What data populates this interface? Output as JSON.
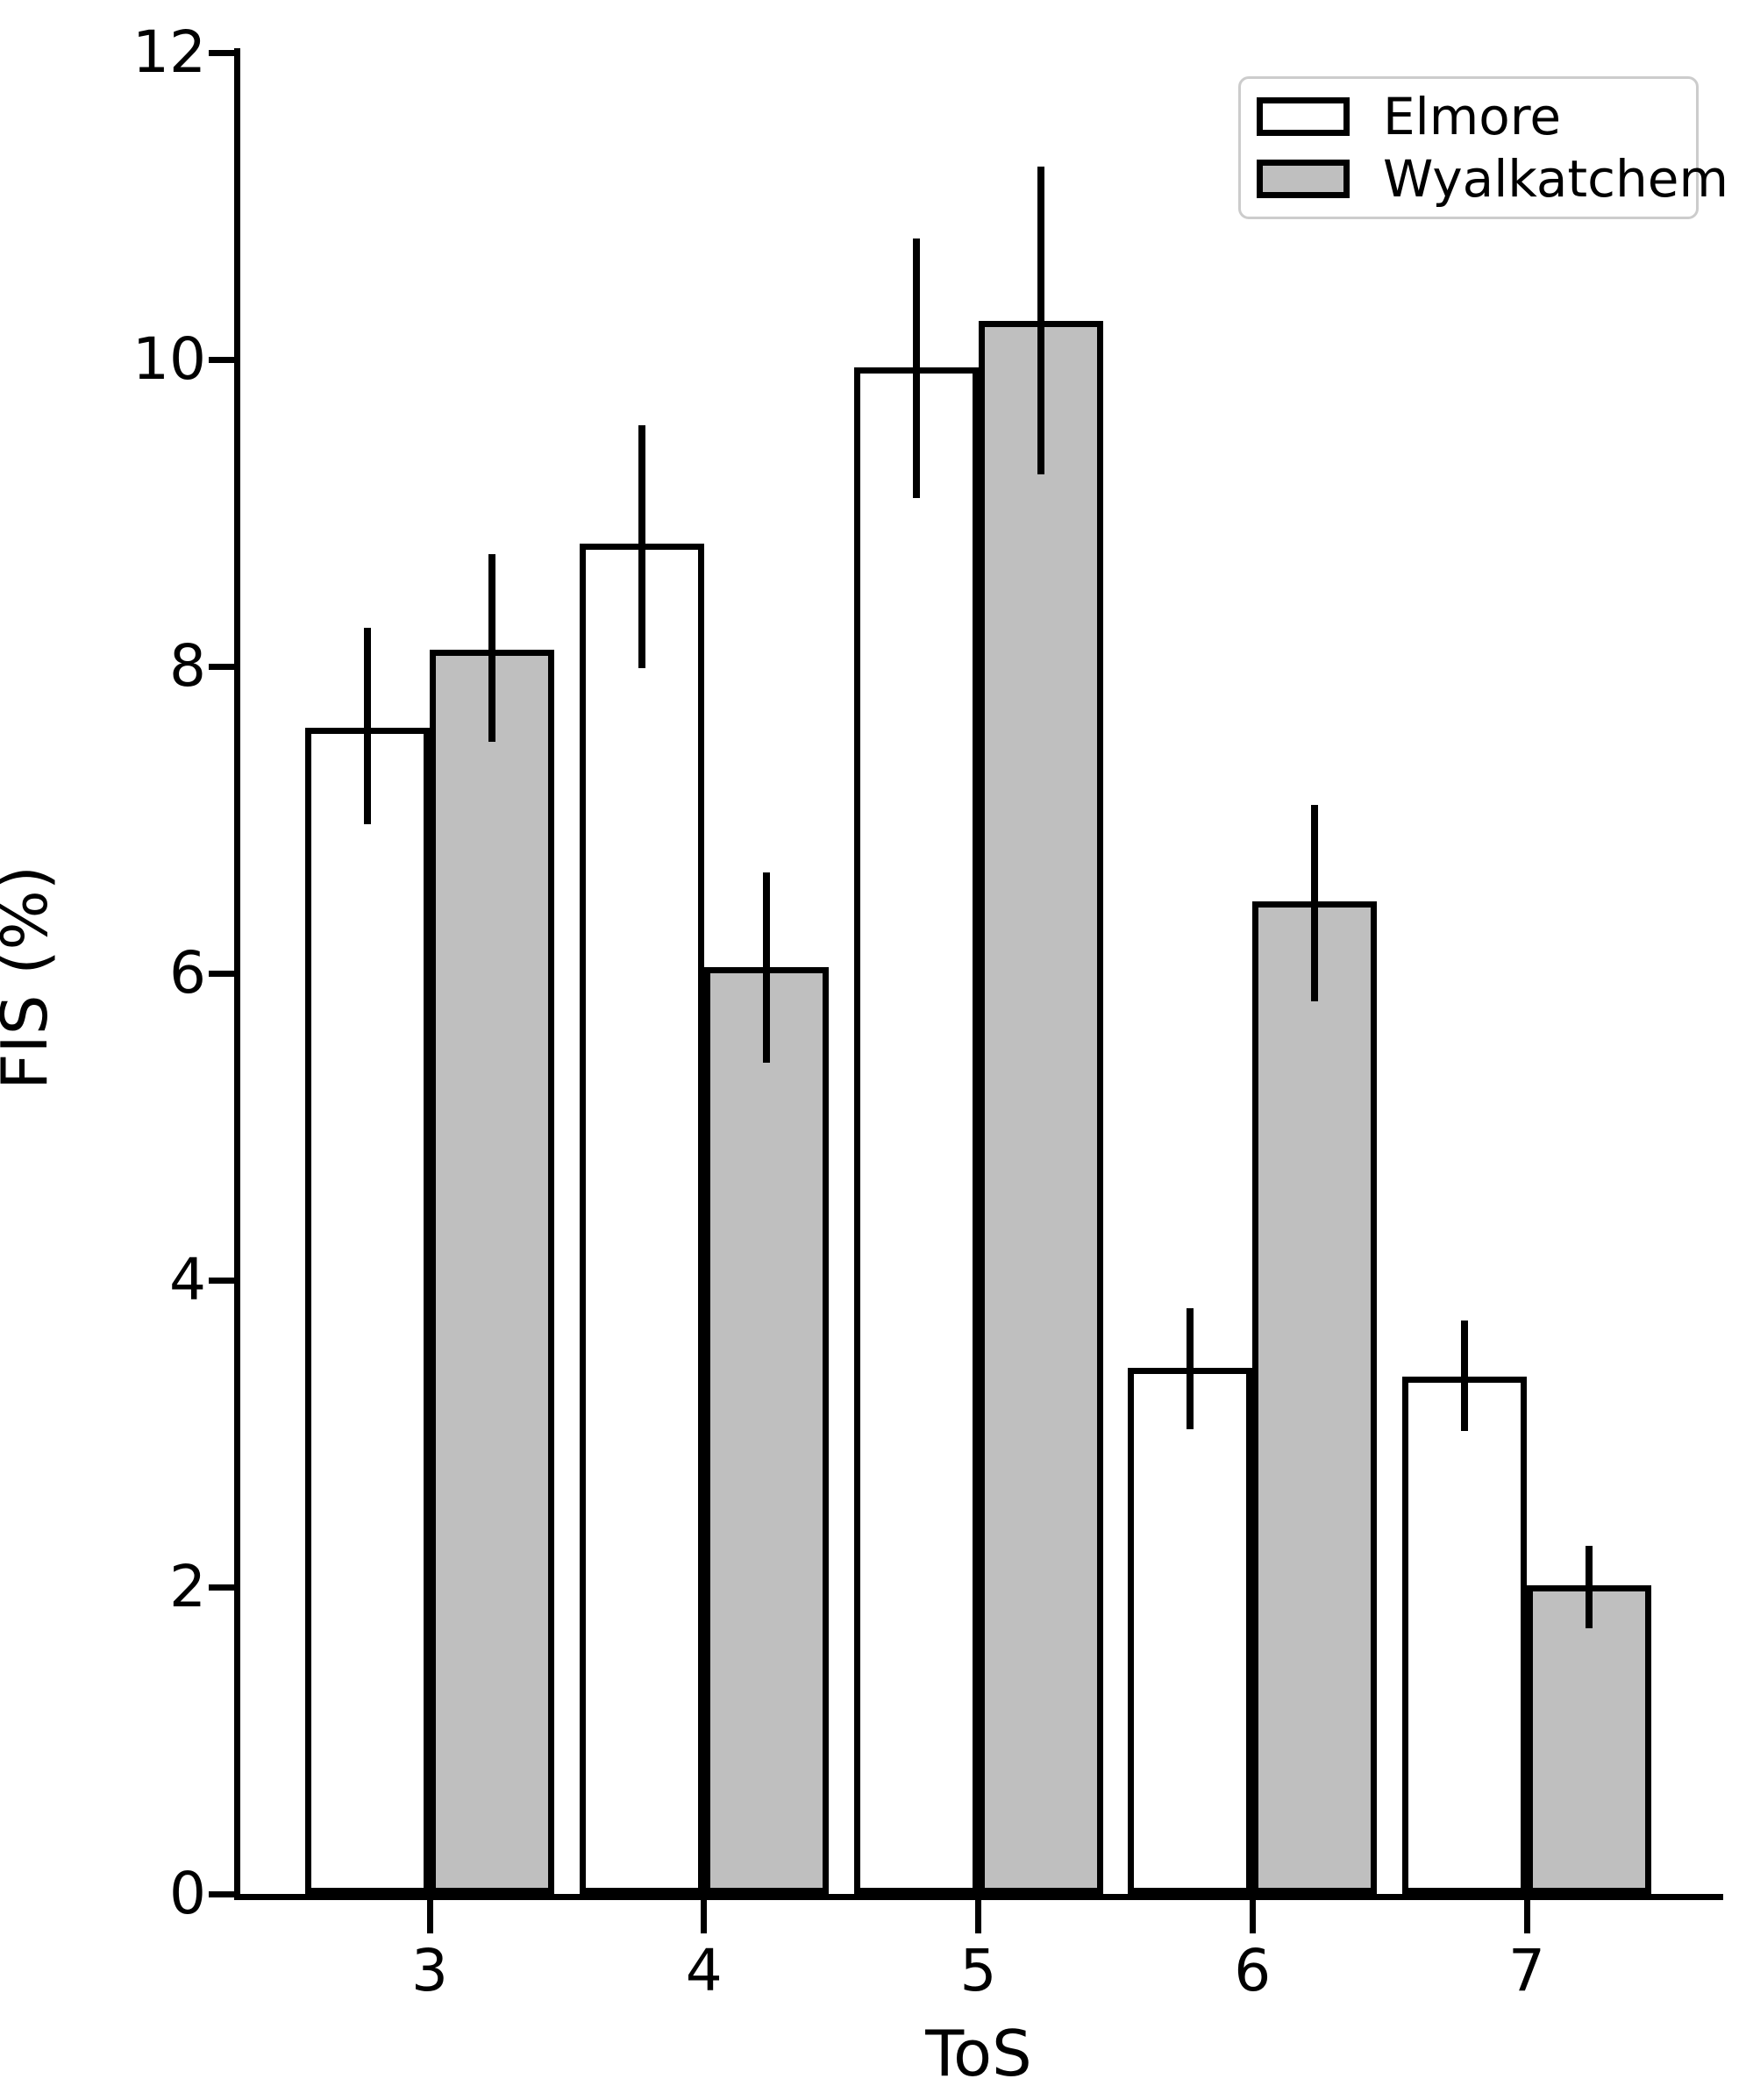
{
  "figure": {
    "background": "#ffffff",
    "text_color": "#000000"
  },
  "chart_data": {
    "type": "bar",
    "title": "",
    "xlabel": "ToS",
    "ylabel": "FIS (%)",
    "categories": [
      "3",
      "4",
      "5",
      "6",
      "7"
    ],
    "y_ticks": [
      0,
      2,
      4,
      6,
      8,
      10,
      12
    ],
    "ylim": [
      0,
      12
    ],
    "grid": false,
    "legend_position": "upper right",
    "bar_edge_color": "#000000",
    "error_bar_color": "#000000",
    "series": [
      {
        "name": "Elmore",
        "fill": "#ffffff",
        "values": [
          7.6,
          8.8,
          9.95,
          3.43,
          3.37
        ],
        "err_low": [
          6.97,
          7.99,
          9.1,
          3.03,
          3.02
        ],
        "err_high": [
          8.25,
          9.57,
          10.79,
          3.82,
          3.74
        ]
      },
      {
        "name": "Wyalkatchem",
        "fill": "#bfbfbf",
        "values": [
          8.11,
          6.04,
          10.25,
          6.47,
          2.01
        ],
        "err_low": [
          7.51,
          5.42,
          9.25,
          5.82,
          1.73
        ],
        "err_high": [
          8.73,
          6.66,
          11.26,
          7.1,
          2.27
        ]
      }
    ]
  }
}
